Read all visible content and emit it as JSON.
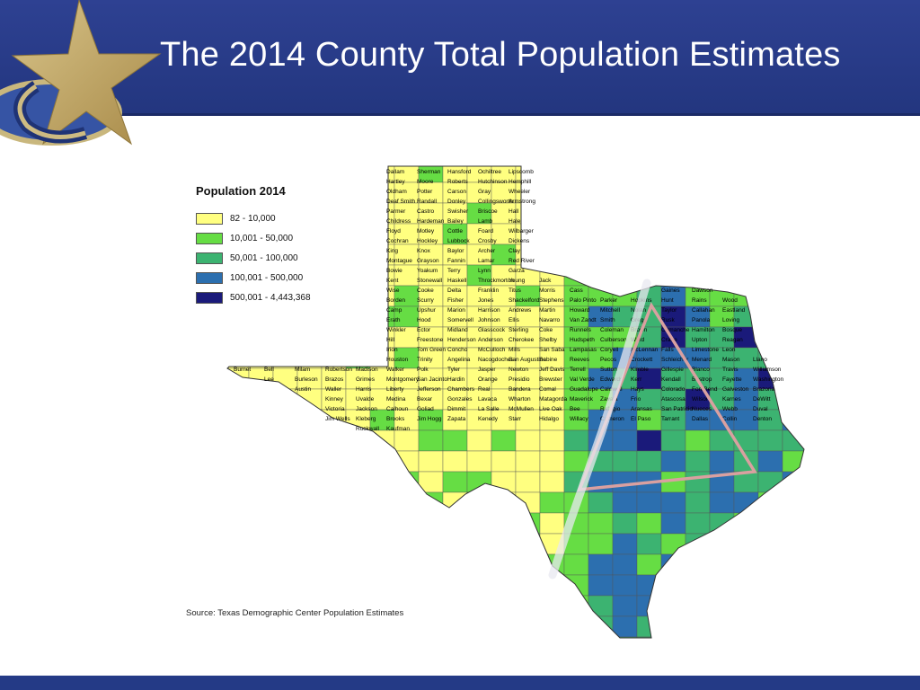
{
  "slide": {
    "title": "The 2014 County Total Population Estimates",
    "source": "Source: Texas Demographic Center Population Estimates"
  },
  "legend": {
    "title": "Population 2014",
    "items": [
      {
        "label": "82 - 10,000",
        "color": "#ffff80"
      },
      {
        "label": "10,001 - 50,000",
        "color": "#66dd44"
      },
      {
        "label": "50,001 - 100,000",
        "color": "#3cb371"
      },
      {
        "label": "100,001 - 500,000",
        "color": "#2c6faf"
      },
      {
        "label": "500,001 - 4,443,368",
        "color": "#1a1a7a"
      }
    ]
  },
  "map": {
    "county_labels": [
      "Dallam",
      "Sherman",
      "Hansford",
      "Ochiltree",
      "Lipscomb",
      "Hartley",
      "Moore",
      "Roberts",
      "Hutchinson",
      "Hemphill",
      "Oldham",
      "Potter",
      "Carson",
      "Gray",
      "Wheeler",
      "Deaf Smith",
      "Randall",
      "Donley",
      "Collingsworth",
      "Armstrong",
      "Parmer",
      "Castro",
      "Swisher",
      "Briscoe",
      "Hall",
      "Childress",
      "Hardeman",
      "Bailey",
      "Lamb",
      "Hale",
      "Floyd",
      "Motley",
      "Cottle",
      "Foard",
      "Wilbarger",
      "Cochran",
      "Hockley",
      "Lubbock",
      "Crosby",
      "Dickens",
      "King",
      "Knox",
      "Baylor",
      "Archer",
      "Clay",
      "Montague",
      "Grayson",
      "Fannin",
      "Lamar",
      "Red River",
      "Bowie",
      "Yoakum",
      "Terry",
      "Lynn",
      "Garza",
      "Kent",
      "Stonewall",
      "Haskell",
      "Throckmorton",
      "Young",
      "Jack",
      "Wise",
      "Cooke",
      "Delta",
      "Franklin",
      "Titus",
      "Morris",
      "Cass",
      "Gaines",
      "Dawson",
      "Borden",
      "Scurry",
      "Fisher",
      "Jones",
      "Shackelford",
      "Stephens",
      "Palo Pinto",
      "Parker",
      "Hopkins",
      "Hunt",
      "Rains",
      "Wood",
      "Camp",
      "Upshur",
      "Marion",
      "Harrison",
      "Andrews",
      "Martin",
      "Howard",
      "Mitchell",
      "Nolan",
      "Taylor",
      "Callahan",
      "Eastland",
      "Erath",
      "Hood",
      "Somervell",
      "Johnson",
      "Ellis",
      "Navarro",
      "Van Zandt",
      "Smith",
      "Gregg",
      "Rusk",
      "Panola",
      "Loving",
      "Winkler",
      "Ector",
      "Midland",
      "Glasscock",
      "Sterling",
      "Coke",
      "Runnels",
      "Coleman",
      "Brown",
      "Comanche",
      "Hamilton",
      "Bosque",
      "Hill",
      "Freestone",
      "Henderson",
      "Anderson",
      "Cherokee",
      "Shelby",
      "Hudspeth",
      "Culberson",
      "Ward",
      "Crane",
      "Upton",
      "Reagan",
      "Irion",
      "Tom Green",
      "Concho",
      "McCulloch",
      "Mills",
      "San Saba",
      "Lampasas",
      "Coryell",
      "McLennan",
      "Falls",
      "Limestone",
      "Leon",
      "Houston",
      "Trinity",
      "Angelina",
      "Nacogdoches",
      "San Augustine",
      "Sabine",
      "Reeves",
      "Pecos",
      "Crockett",
      "Schleicher",
      "Menard",
      "Mason",
      "Llano",
      "Burnet",
      "Bell",
      "Milam",
      "Robertson",
      "Madison",
      "Walker",
      "Polk",
      "Tyler",
      "Jasper",
      "Newton",
      "Jeff Davis",
      "Terrell",
      "Sutton",
      "Kimble",
      "Gillespie",
      "Blanco",
      "Travis",
      "Williamson",
      "Lee",
      "Burleson",
      "Brazos",
      "Grimes",
      "Montgomery",
      "San Jacinto",
      "Hardin",
      "Orange",
      "Presidio",
      "Brewster",
      "Val Verde",
      "Edwards",
      "Kerr",
      "Kendall",
      "Bastrop",
      "Fayette",
      "Washington",
      "Austin",
      "Waller",
      "Harris",
      "Liberty",
      "Jefferson",
      "Chambers",
      "Real",
      "Bandera",
      "Comal",
      "Guadalupe",
      "Caldwell",
      "Hays",
      "Colorado",
      "Fort Bend",
      "Galveston",
      "Brazoria",
      "Kinney",
      "Uvalde",
      "Medina",
      "Bexar",
      "Gonzales",
      "Lavaca",
      "Wharton",
      "Matagorda",
      "Maverick",
      "Zavala",
      "Frio",
      "Atascosa",
      "Wilson",
      "Karnes",
      "DeWitt",
      "Victoria",
      "Jackson",
      "Calhoun",
      "Goliad",
      "Dimmit",
      "La Salle",
      "McMullen",
      "Live Oak",
      "Bee",
      "Refugio",
      "Aransas",
      "San Patricio",
      "Nueces",
      "Webb",
      "Duval",
      "Jim Wells",
      "Kleberg",
      "Brooks",
      "Jim Hogg",
      "Zapata",
      "Kenedy",
      "Starr",
      "Hidalgo",
      "Willacy",
      "Cameron",
      "El Paso",
      "Tarrant",
      "Dallas",
      "Collin",
      "Denton",
      "Rockwall",
      "Kaufman"
    ]
  }
}
